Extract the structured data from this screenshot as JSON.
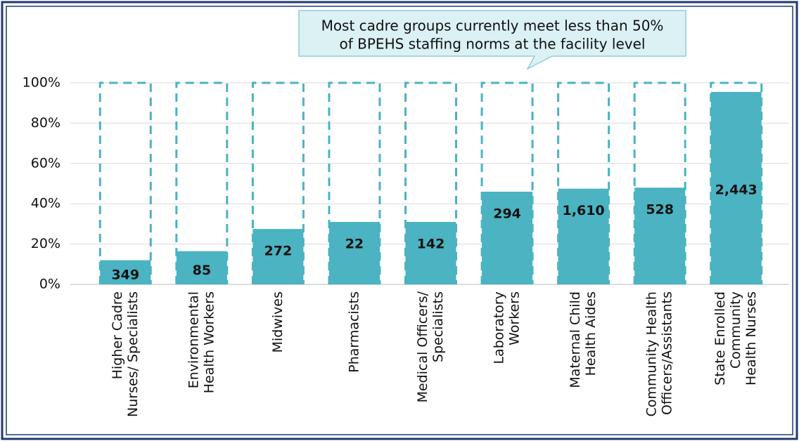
{
  "chart_data": {
    "type": "bar",
    "annotation": [
      "Most cadre groups currently meet less than 50%",
      "of BPEHS staffing norms at the facility level"
    ],
    "categories": [
      [
        "Higher Cadre",
        "Nurses/ Specialists"
      ],
      [
        "Environmental",
        "Health Workers"
      ],
      [
        "Midwives"
      ],
      [
        "Pharmacists"
      ],
      [
        "Medical Officers/",
        "Specialists"
      ],
      [
        "Laboratory",
        "Workers"
      ],
      [
        "Maternal Child",
        "Health  Aides"
      ],
      [
        "Community Health",
        "Officers/Assistants"
      ],
      [
        "State Enrolled",
        "Community",
        "Health Nurses"
      ]
    ],
    "values": [
      12,
      16.5,
      27.5,
      31,
      31,
      46,
      47.5,
      48,
      95.5
    ],
    "data_labels": [
      "349",
      "85",
      "272",
      "22",
      "142",
      "294",
      "1,610",
      "528",
      "2,443"
    ],
    "target": 100,
    "color": "#4bb3c2",
    "ylim": [
      0,
      100
    ],
    "yticks": [
      {
        "value": 0,
        "label": "0%"
      },
      {
        "value": 20,
        "label": "20%"
      },
      {
        "value": 40,
        "label": "40%"
      },
      {
        "value": 60,
        "label": "60%"
      },
      {
        "value": 80,
        "label": "80%"
      },
      {
        "value": 100,
        "label": "100%"
      }
    ],
    "grid": true
  }
}
